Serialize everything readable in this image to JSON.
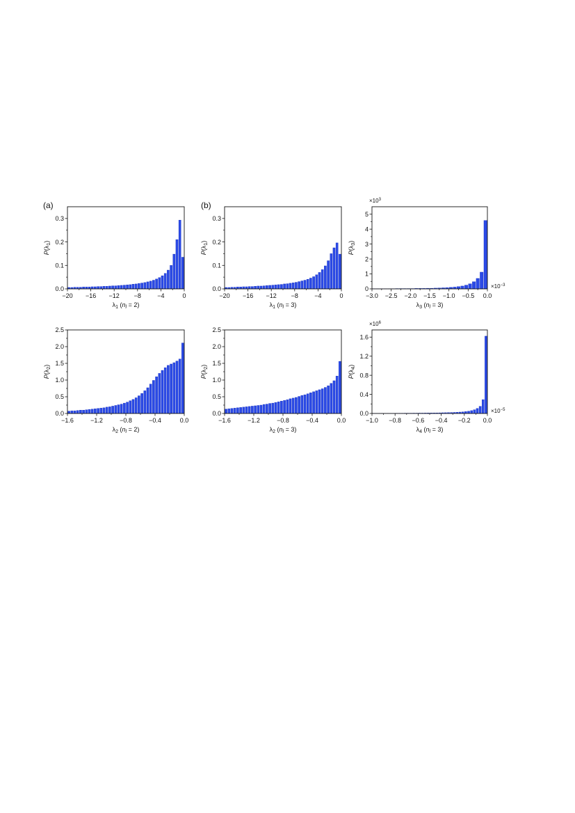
{
  "panel_labels": {
    "a": "(a)",
    "b": "(b)"
  },
  "colors": {
    "bar_fill": "#2b4ae6",
    "bar_stroke": "#1530c0",
    "axis": "#111111"
  },
  "chart_data": [
    {
      "id": "a1",
      "type": "bar",
      "ylabel_main": "P",
      "ylabel_arg": "λ",
      "ylabel_sub": "1",
      "xlabel_main": "λ",
      "xlabel_sub1": "1",
      "xlabel_n": "n",
      "xlabel_sub2": "l",
      "xlabel_rest": " = 2)",
      "xlim": [
        -20,
        0
      ],
      "ylim": [
        0,
        0.35
      ],
      "xticks": [
        -20,
        -16,
        -12,
        -8,
        -4,
        0
      ],
      "xtick_labels": [
        "−20",
        "−16",
        "−12",
        "−8",
        "−4",
        "0"
      ],
      "yticks": [
        0,
        0.1,
        0.2,
        0.3
      ],
      "ytick_labels": [
        "0.0",
        "0.1",
        "0.2",
        "0.3"
      ],
      "bin_width": 0.5,
      "x": [
        -19.75,
        -19.25,
        -18.75,
        -18.25,
        -17.75,
        -17.25,
        -16.75,
        -16.25,
        -15.75,
        -15.25,
        -14.75,
        -14.25,
        -13.75,
        -13.25,
        -12.75,
        -12.25,
        -11.75,
        -11.25,
        -10.75,
        -10.25,
        -9.75,
        -9.25,
        -8.75,
        -8.25,
        -7.75,
        -7.25,
        -6.75,
        -6.25,
        -5.75,
        -5.25,
        -4.75,
        -4.25,
        -3.75,
        -3.25,
        -2.75,
        -2.25,
        -1.75,
        -1.25,
        -0.75,
        -0.25
      ],
      "values": [
        0.006,
        0.006,
        0.007,
        0.007,
        0.007,
        0.008,
        0.008,
        0.008,
        0.009,
        0.009,
        0.01,
        0.01,
        0.011,
        0.011,
        0.012,
        0.013,
        0.013,
        0.014,
        0.015,
        0.016,
        0.017,
        0.018,
        0.02,
        0.021,
        0.023,
        0.025,
        0.027,
        0.03,
        0.033,
        0.037,
        0.042,
        0.048,
        0.056,
        0.066,
        0.08,
        0.1,
        0.148,
        0.21,
        0.293,
        0.135
      ]
    },
    {
      "id": "b1",
      "type": "bar",
      "ylabel_main": "P",
      "ylabel_arg": "λ",
      "ylabel_sub": "1",
      "xlabel_main": "λ",
      "xlabel_sub1": "1",
      "xlabel_n": "n",
      "xlabel_sub2": "l",
      "xlabel_rest": " = 3)",
      "xlim": [
        -20,
        0
      ],
      "ylim": [
        0,
        0.35
      ],
      "xticks": [
        -20,
        -16,
        -12,
        -8,
        -4,
        0
      ],
      "xtick_labels": [
        "−20",
        "−16",
        "−12",
        "−8",
        "−4",
        "0"
      ],
      "yticks": [
        0,
        0.1,
        0.2,
        0.3
      ],
      "ytick_labels": [
        "0.0",
        "0.1",
        "0.2",
        "0.3"
      ],
      "bin_width": 0.5,
      "x": [
        -19.75,
        -19.25,
        -18.75,
        -18.25,
        -17.75,
        -17.25,
        -16.75,
        -16.25,
        -15.75,
        -15.25,
        -14.75,
        -14.25,
        -13.75,
        -13.25,
        -12.75,
        -12.25,
        -11.75,
        -11.25,
        -10.75,
        -10.25,
        -9.75,
        -9.25,
        -8.75,
        -8.25,
        -7.75,
        -7.25,
        -6.75,
        -6.25,
        -5.75,
        -5.25,
        -4.75,
        -4.25,
        -3.75,
        -3.25,
        -2.75,
        -2.25,
        -1.75,
        -1.25,
        -0.75,
        -0.25
      ],
      "values": [
        0.006,
        0.006,
        0.007,
        0.007,
        0.008,
        0.008,
        0.009,
        0.009,
        0.01,
        0.01,
        0.011,
        0.012,
        0.012,
        0.013,
        0.014,
        0.015,
        0.016,
        0.017,
        0.018,
        0.019,
        0.021,
        0.022,
        0.024,
        0.026,
        0.028,
        0.031,
        0.034,
        0.037,
        0.041,
        0.046,
        0.052,
        0.06,
        0.07,
        0.082,
        0.098,
        0.12,
        0.15,
        0.175,
        0.196,
        0.148
      ]
    },
    {
      "id": "b3",
      "type": "bar",
      "ylabel_main": "P",
      "ylabel_arg": "λ",
      "ylabel_sub": "3",
      "xlabel_main": "λ",
      "xlabel_sub1": "3",
      "xlabel_n": "n",
      "xlabel_sub2": "l",
      "xlabel_rest": " = 3)",
      "xlim": [
        -3.0,
        0
      ],
      "ylim": [
        0,
        5.5
      ],
      "xticks": [
        -3.0,
        -2.5,
        -2.0,
        -1.5,
        -1.0,
        -0.5,
        0.0
      ],
      "xtick_labels": [
        "−3.0",
        "−2.5",
        "−2.0",
        "−1.5",
        "−1.0",
        "−0.5",
        "0.0"
      ],
      "yticks": [
        0,
        1,
        2,
        3,
        4,
        5
      ],
      "ytick_labels": [
        "0",
        "1",
        "2",
        "3",
        "4",
        "5"
      ],
      "y_multiplier": "×10",
      "y_multiplier_exp": "3",
      "x_multiplier": "×10",
      "x_multiplier_exp": "−3",
      "bin_width": 0.1,
      "x": [
        -2.95,
        -2.85,
        -2.75,
        -2.65,
        -2.55,
        -2.45,
        -2.35,
        -2.25,
        -2.15,
        -2.05,
        -1.95,
        -1.85,
        -1.75,
        -1.65,
        -1.55,
        -1.45,
        -1.35,
        -1.25,
        -1.15,
        -1.05,
        -0.95,
        -0.85,
        -0.75,
        -0.65,
        -0.55,
        -0.45,
        -0.35,
        -0.25,
        -0.15,
        -0.05
      ],
      "values": [
        0.01,
        0.01,
        0.01,
        0.01,
        0.01,
        0.01,
        0.02,
        0.02,
        0.02,
        0.02,
        0.02,
        0.03,
        0.03,
        0.03,
        0.04,
        0.04,
        0.05,
        0.06,
        0.07,
        0.08,
        0.1,
        0.12,
        0.15,
        0.19,
        0.25,
        0.34,
        0.48,
        0.7,
        1.12,
        4.58
      ]
    },
    {
      "id": "a2",
      "type": "bar",
      "ylabel_main": "P",
      "ylabel_arg": "λ",
      "ylabel_sub": "2",
      "xlabel_main": "λ",
      "xlabel_sub1": "2",
      "xlabel_n": "n",
      "xlabel_sub2": "l",
      "xlabel_rest": " = 2)",
      "xlim": [
        -1.6,
        0
      ],
      "ylim": [
        0,
        2.5
      ],
      "xticks": [
        -1.6,
        -1.2,
        -0.8,
        -0.4,
        0.0
      ],
      "xtick_labels": [
        "−1.6",
        "−1.2",
        "−0.8",
        "−0.4",
        "0.0"
      ],
      "yticks": [
        0,
        0.5,
        1.0,
        1.5,
        2.0,
        2.5
      ],
      "ytick_labels": [
        "0.0",
        "0.5",
        "1.0",
        "1.5",
        "2.0",
        "2.5"
      ],
      "bin_width": 0.04,
      "x": [
        -1.58,
        -1.54,
        -1.5,
        -1.46,
        -1.42,
        -1.38,
        -1.34,
        -1.3,
        -1.26,
        -1.22,
        -1.18,
        -1.14,
        -1.1,
        -1.06,
        -1.02,
        -0.98,
        -0.94,
        -0.9,
        -0.86,
        -0.82,
        -0.78,
        -0.74,
        -0.7,
        -0.66,
        -0.62,
        -0.58,
        -0.54,
        -0.5,
        -0.46,
        -0.42,
        -0.38,
        -0.34,
        -0.3,
        -0.26,
        -0.22,
        -0.18,
        -0.14,
        -0.1,
        -0.06,
        -0.02
      ],
      "values": [
        0.07,
        0.08,
        0.08,
        0.09,
        0.1,
        0.1,
        0.11,
        0.12,
        0.13,
        0.14,
        0.15,
        0.16,
        0.17,
        0.19,
        0.2,
        0.22,
        0.24,
        0.26,
        0.28,
        0.31,
        0.34,
        0.38,
        0.42,
        0.47,
        0.53,
        0.6,
        0.68,
        0.77,
        0.88,
        0.99,
        1.1,
        1.2,
        1.29,
        1.37,
        1.44,
        1.48,
        1.52,
        1.57,
        1.63,
        2.11
      ]
    },
    {
      "id": "b2",
      "type": "bar",
      "ylabel_main": "P",
      "ylabel_arg": "λ",
      "ylabel_sub": "2",
      "xlabel_main": "λ",
      "xlabel_sub1": "2",
      "xlabel_n": "n",
      "xlabel_sub2": "l",
      "xlabel_rest": " = 3)",
      "xlim": [
        -1.6,
        0
      ],
      "ylim": [
        0,
        2.5
      ],
      "xticks": [
        -1.6,
        -1.2,
        -0.8,
        -0.4,
        0.0
      ],
      "xtick_labels": [
        "−1.6",
        "−1.2",
        "−0.8",
        "−0.4",
        "0.0"
      ],
      "yticks": [
        0,
        0.5,
        1.0,
        1.5,
        2.0,
        2.5
      ],
      "ytick_labels": [
        "0.0",
        "0.5",
        "1.0",
        "1.5",
        "2.0",
        "2.5"
      ],
      "bin_width": 0.04,
      "x": [
        -1.58,
        -1.54,
        -1.5,
        -1.46,
        -1.42,
        -1.38,
        -1.34,
        -1.3,
        -1.26,
        -1.22,
        -1.18,
        -1.14,
        -1.1,
        -1.06,
        -1.02,
        -0.98,
        -0.94,
        -0.9,
        -0.86,
        -0.82,
        -0.78,
        -0.74,
        -0.7,
        -0.66,
        -0.62,
        -0.58,
        -0.54,
        -0.5,
        -0.46,
        -0.42,
        -0.38,
        -0.34,
        -0.3,
        -0.26,
        -0.22,
        -0.18,
        -0.14,
        -0.1,
        -0.06,
        -0.02
      ],
      "values": [
        0.13,
        0.14,
        0.15,
        0.16,
        0.17,
        0.18,
        0.19,
        0.2,
        0.21,
        0.22,
        0.23,
        0.24,
        0.25,
        0.27,
        0.28,
        0.3,
        0.31,
        0.33,
        0.35,
        0.37,
        0.39,
        0.41,
        0.44,
        0.46,
        0.48,
        0.51,
        0.54,
        0.56,
        0.59,
        0.62,
        0.65,
        0.68,
        0.71,
        0.74,
        0.78,
        0.83,
        0.9,
        0.98,
        1.12,
        1.56
      ]
    },
    {
      "id": "b4",
      "type": "bar",
      "ylabel_main": "P",
      "ylabel_arg": "λ",
      "ylabel_sub": "4",
      "xlabel_main": "λ",
      "xlabel_sub1": "4",
      "xlabel_n": "n",
      "xlabel_sub2": "l",
      "xlabel_rest": " = 3)",
      "xlim": [
        -1.0,
        0
      ],
      "ylim": [
        0,
        1.75
      ],
      "xticks": [
        -1.0,
        -0.8,
        -0.6,
        -0.4,
        -0.2,
        0.0
      ],
      "xtick_labels": [
        "−1.0",
        "−0.8",
        "−0.6",
        "−0.4",
        "−0.2",
        "0.0"
      ],
      "yticks": [
        0,
        0.4,
        0.8,
        1.2,
        1.6
      ],
      "ytick_labels": [
        "0.0",
        "0.4",
        "0.8",
        "1.2",
        "1.6"
      ],
      "y_multiplier": "×10",
      "y_multiplier_exp": "6",
      "x_multiplier": "×10",
      "x_multiplier_exp": "−5",
      "bin_width": 0.025,
      "x": [
        -0.9875,
        -0.9625,
        -0.9375,
        -0.9125,
        -0.8875,
        -0.8625,
        -0.8375,
        -0.8125,
        -0.7875,
        -0.7625,
        -0.7375,
        -0.7125,
        -0.6875,
        -0.6625,
        -0.6375,
        -0.6125,
        -0.5875,
        -0.5625,
        -0.5375,
        -0.5125,
        -0.4875,
        -0.4625,
        -0.4375,
        -0.4125,
        -0.3875,
        -0.3625,
        -0.3375,
        -0.3125,
        -0.2875,
        -0.2625,
        -0.2375,
        -0.2125,
        -0.1875,
        -0.1625,
        -0.1375,
        -0.1125,
        -0.0875,
        -0.0625,
        -0.0375,
        -0.0125
      ],
      "values": [
        0.003,
        0.003,
        0.003,
        0.003,
        0.004,
        0.004,
        0.004,
        0.004,
        0.005,
        0.005,
        0.005,
        0.006,
        0.006,
        0.006,
        0.007,
        0.007,
        0.008,
        0.008,
        0.009,
        0.01,
        0.01,
        0.011,
        0.012,
        0.013,
        0.015,
        0.016,
        0.018,
        0.02,
        0.022,
        0.025,
        0.029,
        0.033,
        0.04,
        0.048,
        0.06,
        0.078,
        0.105,
        0.15,
        0.29,
        1.62
      ]
    }
  ]
}
